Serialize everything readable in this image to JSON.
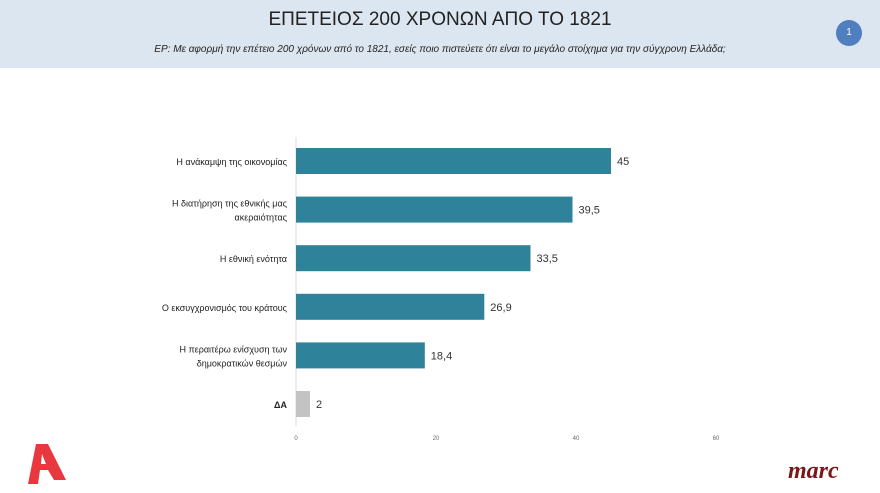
{
  "header": {
    "title": "ΕΠΕΤΕΙΟΣ 200 ΧΡΟΝΩΝ ΑΠΟ ΤΟ 1821",
    "question": "ΕΡ:  Με αφορμή την επέτειο 200 χρόνων από το 1821, εσείς ποιο πιστεύετε ότι είναι το μεγάλο στοίχημα για την σύγχρονη Ελλάδα;",
    "page_number": "1"
  },
  "logos": {
    "left": "Α",
    "right": "marc"
  },
  "colors": {
    "bar": "#2e8299",
    "bar_na": "#c3c3c3",
    "header_bg": "#dce6f1"
  },
  "chart_data": {
    "type": "bar",
    "orientation": "horizontal",
    "categories": [
      [
        "Η ανάκαμψη της οικονομίας"
      ],
      [
        "Η διατήρηση της εθνικής μας",
        "ακεραιότητας"
      ],
      [
        "Η εθνική ενότητα"
      ],
      [
        "Ο εκσυγχρονισμός του κράτους"
      ],
      [
        "Η περαιτέρω ενίσχυση των",
        "δημοκρατικών θεσμών"
      ],
      [
        "ΔΑ"
      ]
    ],
    "values": [
      45,
      39.5,
      33.5,
      26.9,
      18.4,
      2
    ],
    "value_labels": [
      "45",
      "39,5",
      "33,5",
      "26,9",
      "18,4",
      "2"
    ],
    "xlim": [
      0,
      60
    ],
    "xticks": [
      0,
      20,
      40,
      60
    ],
    "grid": false
  }
}
